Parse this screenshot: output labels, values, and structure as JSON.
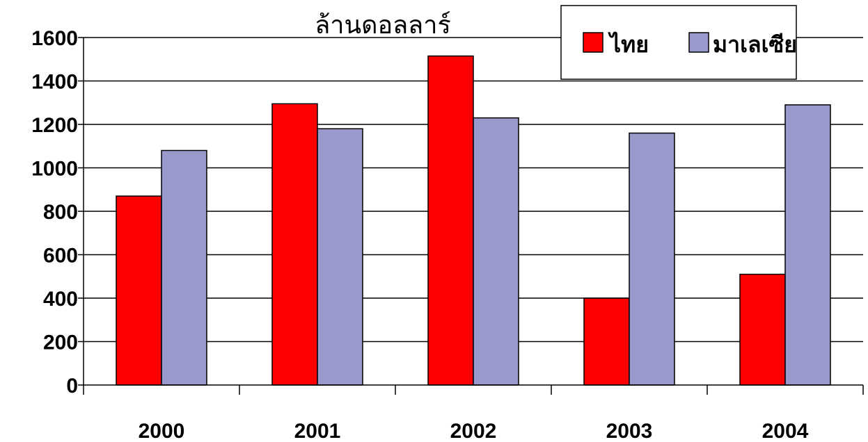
{
  "chart_data": {
    "type": "bar",
    "categories": [
      "2000",
      "2001",
      "2002",
      "2003",
      "2004"
    ],
    "series": [
      {
        "name": "ไทย",
        "color": "#ff0000",
        "values": [
          870,
          1295,
          1515,
          400,
          510
        ]
      },
      {
        "name": "มาเลเซีย",
        "color": "#9999cc",
        "values": [
          1080,
          1180,
          1230,
          1160,
          1290
        ]
      }
    ],
    "ylabel": "ล้านดอลลาร์",
    "ylim": [
      0,
      1600
    ],
    "yticks": [
      0,
      200,
      400,
      600,
      800,
      1000,
      1200,
      1400,
      1600
    ],
    "grid": true,
    "legend_position": "top-right"
  }
}
